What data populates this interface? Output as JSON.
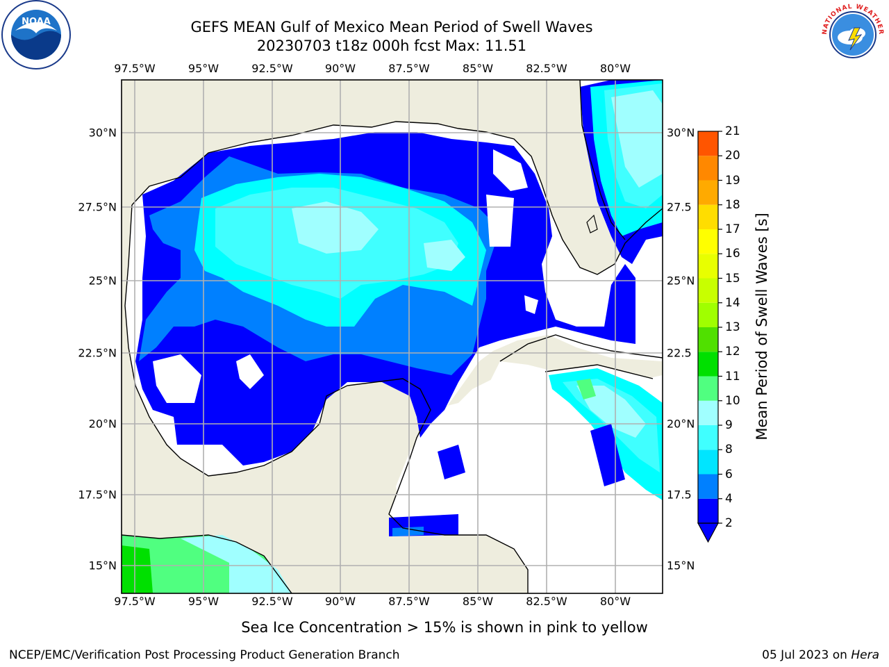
{
  "header": {
    "title": "GEFS MEAN Gulf of Mexico Mean Period of Swell Waves",
    "subtitle": "20230703 t18z 000h fcst   Max: 11.51"
  },
  "axes": {
    "lon_ticks": [
      "97.5°W",
      "95°W",
      "92.5°W",
      "90°W",
      "87.5°W",
      "85°W",
      "82.5°W",
      "80°W"
    ],
    "lat_ticks_left": [
      "30°N",
      "27.5°N",
      "25°N",
      "22.5°N",
      "20°N",
      "17.5°N",
      "15°N"
    ],
    "lat_ticks_right": [
      "30°N",
      "27.5",
      "25°N",
      "22.5",
      "20°N",
      "17.5",
      "15°N"
    ]
  },
  "colorbar": {
    "title": "Mean Period of Swell Waves [s]",
    "labels": [
      "2",
      "4",
      "6",
      "8",
      "9",
      "10",
      "11",
      "12",
      "13",
      "14",
      "15",
      "16",
      "17",
      "18",
      "19",
      "20",
      "21"
    ],
    "colors": [
      "#0000ff",
      "#0080ff",
      "#00e5ff",
      "#40ffff",
      "#a0ffff",
      "#50ff80",
      "#00e000",
      "#50e000",
      "#a0ff00",
      "#c8ff00",
      "#e8ff00",
      "#ffff00",
      "#ffdd00",
      "#ffaa00",
      "#ff8800",
      "#ff5500",
      "#ff2000",
      "#ff0000"
    ]
  },
  "map": {
    "land_color": "#eeedde",
    "ocean_color": "#ffffff",
    "swell_colors": {
      "p2": "#0000ff",
      "p4": "#0080ff",
      "p6": "#00ffff",
      "p8": "#40ffff",
      "p9": "#a0ffff",
      "p10": "#50ff80",
      "p11": "#00e000"
    }
  },
  "logos": {
    "left": "NOAA",
    "right_text": "NATIONAL WEATHER SERVICE"
  },
  "note": "Sea Ice Concentration > 15% is shown in pink to yellow",
  "footer": {
    "left": "NCEP/EMC/Verification Post Processing Product Generation Branch",
    "date": "05 Jul 2023 on ",
    "host": "Hera"
  }
}
